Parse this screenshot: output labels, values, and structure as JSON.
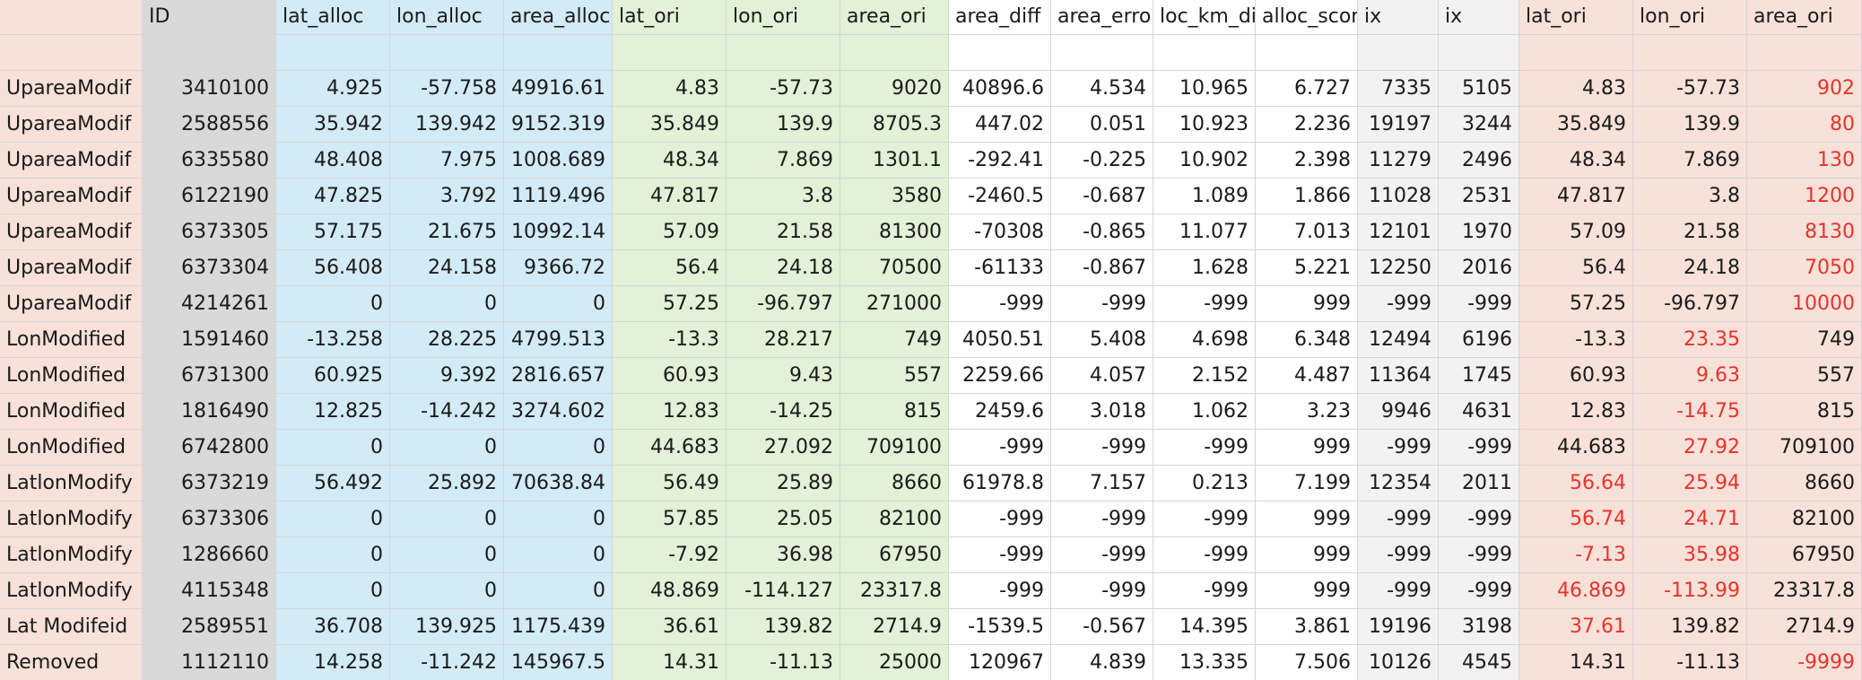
{
  "spreadsheet": {
    "headers": [
      "",
      "ID",
      "lat_alloc",
      "lon_alloc",
      "area_alloc",
      "lat_ori",
      "lon_ori",
      "area_ori",
      "area_diff",
      "area_erro",
      "loc_km_di",
      "alloc_scor",
      "ix",
      "ix",
      "lat_ori",
      "lon_ori",
      "area_ori"
    ],
    "rows": [
      [
        "UpareaModif",
        "3410100",
        "4.925",
        "-57.758",
        "49916.61",
        "4.83",
        "-57.73",
        "9020",
        "40896.6",
        "4.534",
        "10.965",
        "6.727",
        "7335",
        "5105",
        "4.83",
        "-57.73",
        "902"
      ],
      [
        "UpareaModif",
        "2588556",
        "35.942",
        "139.942",
        "9152.319",
        "35.849",
        "139.9",
        "8705.3",
        "447.02",
        "0.051",
        "10.923",
        "2.236",
        "19197",
        "3244",
        "35.849",
        "139.9",
        "80"
      ],
      [
        "UpareaModif",
        "6335580",
        "48.408",
        "7.975",
        "1008.689",
        "48.34",
        "7.869",
        "1301.1",
        "-292.41",
        "-0.225",
        "10.902",
        "2.398",
        "11279",
        "2496",
        "48.34",
        "7.869",
        "130"
      ],
      [
        "UpareaModif",
        "6122190",
        "47.825",
        "3.792",
        "1119.496",
        "47.817",
        "3.8",
        "3580",
        "-2460.5",
        "-0.687",
        "1.089",
        "1.866",
        "11028",
        "2531",
        "47.817",
        "3.8",
        "1200"
      ],
      [
        "UpareaModif",
        "6373305",
        "57.175",
        "21.675",
        "10992.14",
        "57.09",
        "21.58",
        "81300",
        "-70308",
        "-0.865",
        "11.077",
        "7.013",
        "12101",
        "1970",
        "57.09",
        "21.58",
        "8130"
      ],
      [
        "UpareaModif",
        "6373304",
        "56.408",
        "24.158",
        "9366.72",
        "56.4",
        "24.18",
        "70500",
        "-61133",
        "-0.867",
        "1.628",
        "5.221",
        "12250",
        "2016",
        "56.4",
        "24.18",
        "7050"
      ],
      [
        "UpareaModif",
        "4214261",
        "0",
        "0",
        "0",
        "57.25",
        "-96.797",
        "271000",
        "-999",
        "-999",
        "-999",
        "999",
        "-999",
        "-999",
        "57.25",
        "-96.797",
        "10000"
      ],
      [
        "LonModified",
        "1591460",
        "-13.258",
        "28.225",
        "4799.513",
        "-13.3",
        "28.217",
        "749",
        "4050.51",
        "5.408",
        "4.698",
        "6.348",
        "12494",
        "6196",
        "-13.3",
        "23.35",
        "749"
      ],
      [
        "LonModified",
        "6731300",
        "60.925",
        "9.392",
        "2816.657",
        "60.93",
        "9.43",
        "557",
        "2259.66",
        "4.057",
        "2.152",
        "4.487",
        "11364",
        "1745",
        "60.93",
        "9.63",
        "557"
      ],
      [
        "LonModified",
        "1816490",
        "12.825",
        "-14.242",
        "3274.602",
        "12.83",
        "-14.25",
        "815",
        "2459.6",
        "3.018",
        "1.062",
        "3.23",
        "9946",
        "4631",
        "12.83",
        "-14.75",
        "815"
      ],
      [
        "LonModified",
        "6742800",
        "0",
        "0",
        "0",
        "44.683",
        "27.092",
        "709100",
        "-999",
        "-999",
        "-999",
        "999",
        "-999",
        "-999",
        "44.683",
        "27.92",
        "709100"
      ],
      [
        "LatlonModify",
        "6373219",
        "56.492",
        "25.892",
        "70638.84",
        "56.49",
        "25.89",
        "8660",
        "61978.8",
        "7.157",
        "0.213",
        "7.199",
        "12354",
        "2011",
        "56.64",
        "25.94",
        "8660"
      ],
      [
        "LatlonModify",
        "6373306",
        "0",
        "0",
        "0",
        "57.85",
        "25.05",
        "82100",
        "-999",
        "-999",
        "-999",
        "999",
        "-999",
        "-999",
        "56.74",
        "24.71",
        "82100"
      ],
      [
        "LatlonModify",
        "1286660",
        "0",
        "0",
        "0",
        "-7.92",
        "36.98",
        "67950",
        "-999",
        "-999",
        "-999",
        "999",
        "-999",
        "-999",
        "-7.13",
        "35.98",
        "67950"
      ],
      [
        "LatlonModify",
        "4115348",
        "0",
        "0",
        "0",
        "48.869",
        "-114.127",
        "23317.8",
        "-999",
        "-999",
        "-999",
        "999",
        "-999",
        "-999",
        "46.869",
        "-113.99",
        "23317.8"
      ],
      [
        "Lat Modifeid",
        "2589551",
        "36.708",
        "139.925",
        "1175.439",
        "36.61",
        "139.82",
        "2714.9",
        "-1539.5",
        "-0.567",
        "14.395",
        "3.861",
        "19196",
        "3198",
        "37.61",
        "139.82",
        "2714.9"
      ],
      [
        "Removed",
        "1112110",
        "14.258",
        "-11.242",
        "145967.5",
        "14.31",
        "-11.13",
        "25000",
        "120967",
        "4.839",
        "13.335",
        "7.506",
        "10126",
        "4545",
        "14.31",
        "-11.13",
        "-9999"
      ]
    ],
    "highlighted_red": [
      [
        0,
        16
      ],
      [
        1,
        16
      ],
      [
        2,
        16
      ],
      [
        3,
        16
      ],
      [
        4,
        16
      ],
      [
        5,
        16
      ],
      [
        6,
        16
      ],
      [
        7,
        15
      ],
      [
        8,
        15
      ],
      [
        9,
        15
      ],
      [
        10,
        15
      ],
      [
        11,
        14
      ],
      [
        11,
        15
      ],
      [
        12,
        14
      ],
      [
        12,
        15
      ],
      [
        13,
        14
      ],
      [
        13,
        15
      ],
      [
        14,
        14
      ],
      [
        14,
        15
      ],
      [
        15,
        14
      ],
      [
        16,
        16
      ]
    ],
    "colors": {
      "label_col": "#f7e1d8",
      "id_col": "#d9d9d9",
      "alloc_cols": "#d3ebf7",
      "ori_cols": "#e2f1d7",
      "diff_cols": "#ffffff",
      "ix_cols": "#f2f2f2",
      "check_cols": "#f7e1d8",
      "highlight_text": "#e8322d"
    }
  }
}
